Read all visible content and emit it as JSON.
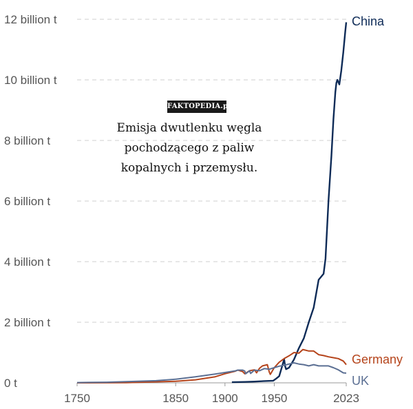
{
  "watermark": "FAKTOPEDIA.pl",
  "caption": "Emisja dwutlenku węgla pochodzącego z paliw kopalnych i przemysłu.",
  "chart_data": {
    "type": "line",
    "title": "",
    "xlabel": "",
    "ylabel": "",
    "xlim": [
      1750,
      2023
    ],
    "ylim": [
      0,
      12
    ],
    "y_unit": "billion t",
    "y_ticks": [
      {
        "value": 0,
        "label": "0 t"
      },
      {
        "value": 2,
        "label": "2 billion t"
      },
      {
        "value": 4,
        "label": "4 billion t"
      },
      {
        "value": 6,
        "label": "6 billion t"
      },
      {
        "value": 8,
        "label": "8 billion t"
      },
      {
        "value": 10,
        "label": "10 billion t"
      },
      {
        "value": 12,
        "label": "12 billion t"
      }
    ],
    "x_ticks": [
      {
        "value": 1750,
        "label": "1750"
      },
      {
        "value": 1850,
        "label": "1850"
      },
      {
        "value": 1900,
        "label": "1900"
      },
      {
        "value": 1950,
        "label": "1950"
      },
      {
        "value": 2023,
        "label": "2023"
      }
    ],
    "grid": true,
    "legend": "inline labels at right end of lines",
    "series": [
      {
        "name": "China",
        "color": "#0e2b57",
        "x": [
          1907,
          1920,
          1930,
          1940,
          1949,
          1952,
          1955,
          1958,
          1960,
          1961,
          1962,
          1965,
          1970,
          1975,
          1980,
          1985,
          1990,
          1995,
          2000,
          2002,
          2005,
          2008,
          2010,
          2012,
          2013,
          2014,
          2016,
          2018,
          2020,
          2022,
          2023
        ],
        "values": [
          0.02,
          0.03,
          0.04,
          0.06,
          0.07,
          0.14,
          0.22,
          0.55,
          0.78,
          0.55,
          0.45,
          0.5,
          0.77,
          1.15,
          1.47,
          2.0,
          2.48,
          3.4,
          3.6,
          4.1,
          6.0,
          7.5,
          8.7,
          9.6,
          9.9,
          10.0,
          9.85,
          10.3,
          10.9,
          11.6,
          11.9
        ]
      },
      {
        "name": "Germany",
        "color": "#b5441b",
        "x": [
          1750,
          1800,
          1850,
          1870,
          1890,
          1900,
          1910,
          1913,
          1918,
          1920,
          1925,
          1930,
          1932,
          1935,
          1938,
          1943,
          1945,
          1946,
          1950,
          1955,
          1960,
          1965,
          1970,
          1975,
          1979,
          1985,
          1990,
          1995,
          2000,
          2005,
          2010,
          2015,
          2020,
          2023
        ],
        "values": [
          0.0,
          0.005,
          0.05,
          0.1,
          0.2,
          0.3,
          0.38,
          0.42,
          0.37,
          0.3,
          0.4,
          0.43,
          0.33,
          0.48,
          0.56,
          0.6,
          0.35,
          0.28,
          0.5,
          0.68,
          0.8,
          0.89,
          1.0,
          0.98,
          1.1,
          1.05,
          1.05,
          0.93,
          0.9,
          0.86,
          0.83,
          0.8,
          0.72,
          0.6
        ]
      },
      {
        "name": "UK",
        "color": "#5b6f93",
        "x": [
          1750,
          1780,
          1800,
          1830,
          1850,
          1870,
          1890,
          1900,
          1910,
          1913,
          1918,
          1920,
          1921,
          1925,
          1926,
          1930,
          1935,
          1940,
          1945,
          1950,
          1955,
          1960,
          1965,
          1970,
          1975,
          1980,
          1985,
          1990,
          1995,
          2000,
          2005,
          2010,
          2015,
          2020,
          2023
        ],
        "values": [
          0.01,
          0.02,
          0.04,
          0.07,
          0.12,
          0.2,
          0.29,
          0.34,
          0.39,
          0.42,
          0.42,
          0.39,
          0.3,
          0.4,
          0.31,
          0.42,
          0.4,
          0.47,
          0.45,
          0.5,
          0.55,
          0.58,
          0.62,
          0.66,
          0.62,
          0.6,
          0.56,
          0.6,
          0.56,
          0.56,
          0.56,
          0.5,
          0.43,
          0.33,
          0.32
        ]
      }
    ]
  }
}
